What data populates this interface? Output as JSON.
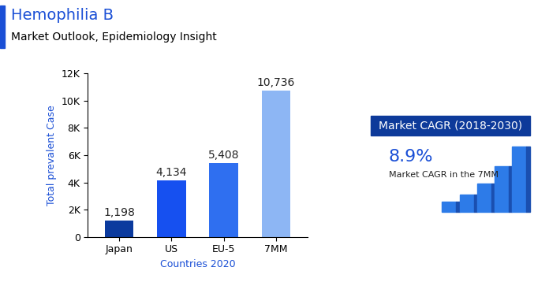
{
  "chart_data": {
    "type": "bar",
    "title": "Hemophilia B",
    "subtitle": "Market Outlook, Epidemiology Insight",
    "x_label": "Countries 2020",
    "y_label": "Total prevalent Case",
    "categories": [
      "Japan",
      "US",
      "EU-5",
      "7MM"
    ],
    "values": [
      1198,
      4134,
      5408,
      10736
    ],
    "value_labels": [
      "1,198",
      "4,134",
      "5,408",
      "10,736"
    ],
    "colors": [
      "#0b3a9e",
      "#1650f0",
      "#2f6ff0",
      "#8db6f4"
    ],
    "data_labels": true,
    "grid": false,
    "ylim": [
      0,
      12000
    ],
    "yticks": [
      0,
      {
        "value": 2000,
        "label": "2K"
      },
      {
        "value": 4000,
        "label": "4K"
      },
      {
        "value": 6000,
        "label": "6K"
      },
      {
        "value": 8000,
        "label": "8K"
      },
      {
        "value": 10000,
        "label": "10K"
      },
      {
        "value": 12000,
        "label": "12K"
      }
    ],
    "annotations": [
      "Market CAGR (2018-2030)",
      "8.9%",
      "Market CAGR in the 7MM"
    ]
  }
}
